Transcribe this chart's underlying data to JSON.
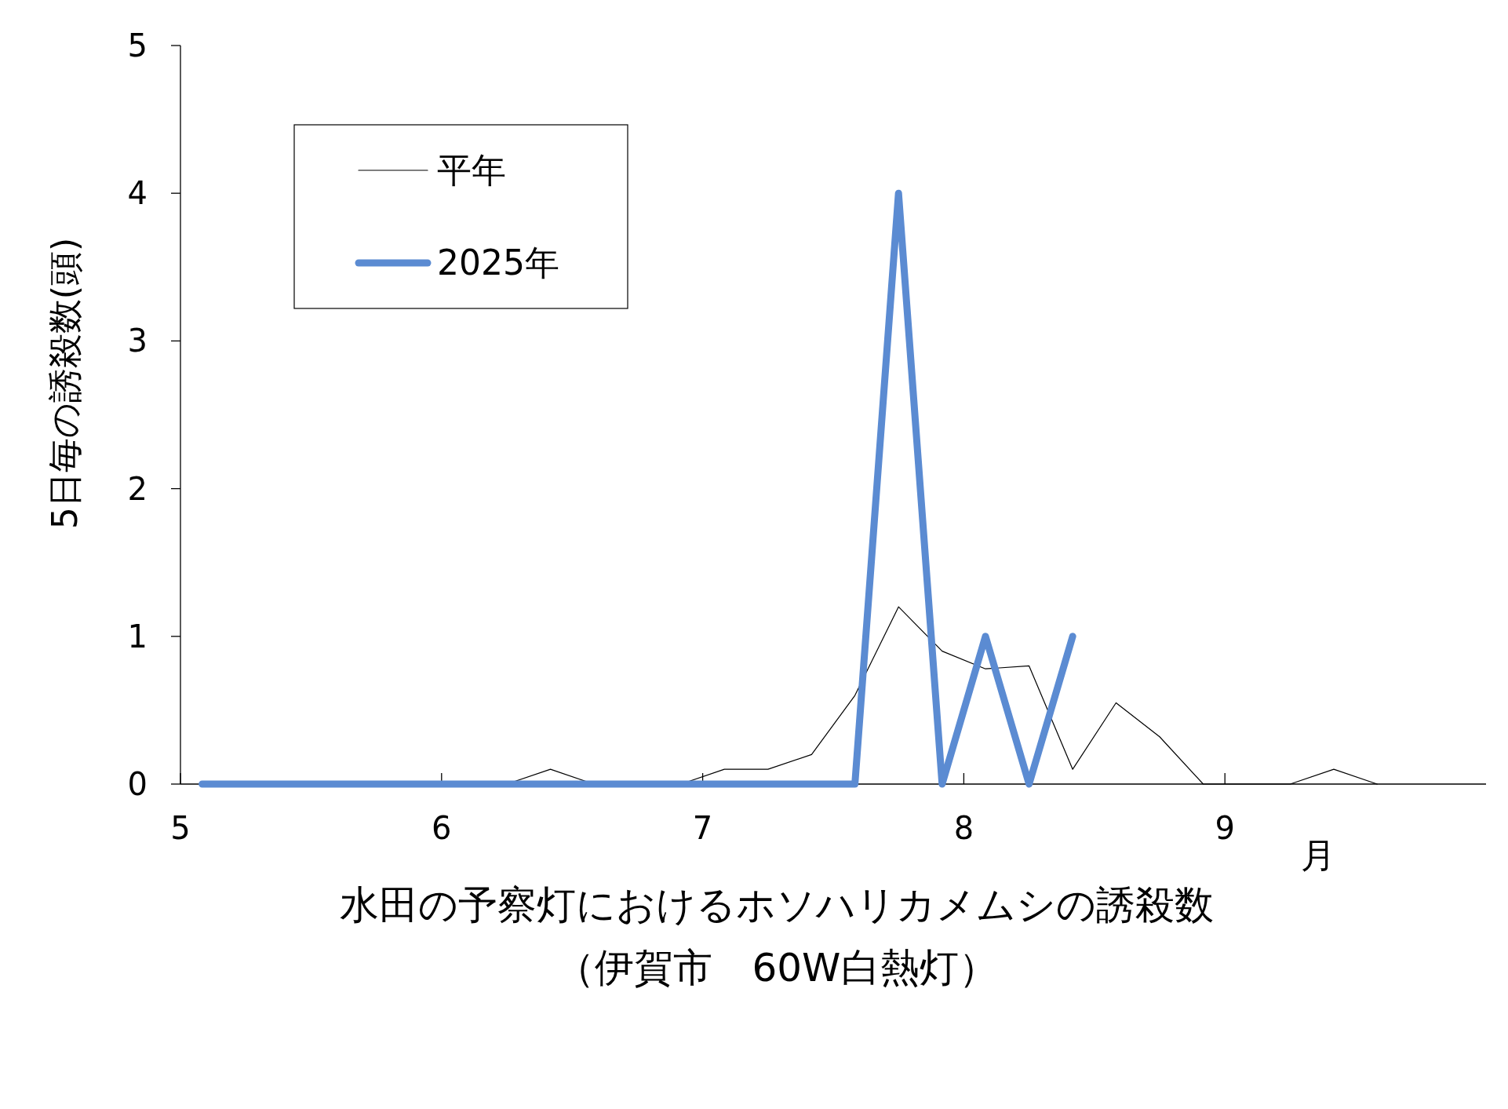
{
  "chart_data": {
    "type": "line",
    "title": "水田の予察灯におけるホソハリカメムシの誘殺数",
    "subtitle": "（伊賀市　60W白熱灯）",
    "xlabel": "月",
    "ylabel": "5日毎の誘殺数(頭)",
    "xlim": [
      5,
      10
    ],
    "xticks": [
      5,
      6,
      7,
      8,
      9
    ],
    "ylim": [
      0,
      5
    ],
    "yticks": [
      0,
      1,
      2,
      3,
      4,
      5
    ],
    "series": [
      {
        "name": "平年",
        "color": "#000000",
        "x": [
          6.083,
          6.25,
          6.417,
          6.583,
          6.75,
          6.917,
          7.083,
          7.25,
          7.417,
          7.583,
          7.75,
          7.917,
          8.083,
          8.25,
          8.417,
          8.583,
          8.75,
          8.917,
          9.083,
          9.25,
          9.417,
          9.583
        ],
        "values": [
          0,
          0,
          0.1,
          0,
          0,
          0,
          0.1,
          0.1,
          0.2,
          0.6,
          1.2,
          0.9,
          0.78,
          0.8,
          0.1,
          0.55,
          0.32,
          0,
          0,
          0,
          0.1,
          0
        ]
      },
      {
        "name": "2025年",
        "color": "#5b8bd2",
        "x": [
          5.083,
          5.25,
          5.417,
          5.583,
          5.75,
          5.917,
          6.083,
          6.25,
          6.417,
          6.583,
          6.75,
          6.917,
          7.083,
          7.25,
          7.417,
          7.583,
          7.75,
          7.917,
          8.083,
          8.25,
          8.417
        ],
        "values": [
          0,
          0,
          0,
          0,
          0,
          0,
          0,
          0,
          0,
          0,
          0,
          0,
          0,
          0,
          0,
          0,
          4,
          0,
          1,
          0,
          1
        ]
      }
    ],
    "legend": "top left",
    "grid": false,
    "marker": "none",
    "line_style": "solid"
  }
}
